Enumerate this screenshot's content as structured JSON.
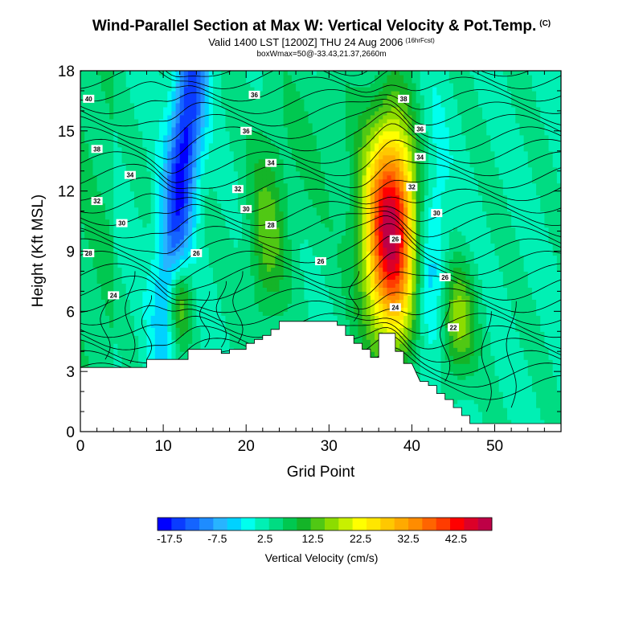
{
  "header": {
    "title": "Wind-Parallel Section at Max W: Vertical Velocity & Pot.Temp.",
    "title_mark": "(C)",
    "subtitle": "Valid 1400 LST [1200Z] THU 24 Aug 2006",
    "subtitle_note": "(16hrFcst)",
    "info": "boxWmax=50@-33.43,21.37,2660m"
  },
  "chart_data": {
    "type": "heatmap",
    "xlabel": "Grid Point",
    "ylabel": "Height (Kft MSL)",
    "xlim": [
      0,
      58
    ],
    "ylim": [
      0,
      18
    ],
    "xticks": [
      0,
      10,
      20,
      30,
      40,
      50
    ],
    "yticks": [
      0,
      3,
      6,
      9,
      12,
      15,
      18
    ],
    "colorbar": {
      "title": "Vertical Velocity (cm/s)",
      "tick_labels": [
        "-17.5",
        "-7.5",
        "2.5",
        "12.5",
        "22.5",
        "32.5",
        "42.5"
      ],
      "tick_values": [
        -17.5,
        -7.5,
        2.5,
        12.5,
        22.5,
        32.5,
        42.5
      ],
      "range": [
        -20,
        50
      ],
      "colors": [
        "#0000ff",
        "#0a3cff",
        "#1464ff",
        "#1e8cff",
        "#28b4ff",
        "#00d2ff",
        "#00ffee",
        "#00f0b4",
        "#00dc82",
        "#00c850",
        "#14b428",
        "#50c814",
        "#8cdc00",
        "#c8f000",
        "#ffff00",
        "#ffe600",
        "#ffc800",
        "#ffaa00",
        "#ff8c00",
        "#ff6400",
        "#ff3c00",
        "#ff0000",
        "#dc0028",
        "#be0046"
      ]
    },
    "contour_labels": [
      {
        "text": "40",
        "x": 1,
        "y": 16.6
      },
      {
        "text": "38",
        "x": 2,
        "y": 14.1
      },
      {
        "text": "34",
        "x": 6,
        "y": 12.8
      },
      {
        "text": "32",
        "x": 2,
        "y": 11.5
      },
      {
        "text": "30",
        "x": 5,
        "y": 10.4
      },
      {
        "text": "28",
        "x": 1,
        "y": 8.9
      },
      {
        "text": "24",
        "x": 4,
        "y": 6.8
      },
      {
        "text": "26",
        "x": 14,
        "y": 8.9
      },
      {
        "text": "36",
        "x": 21,
        "y": 16.8
      },
      {
        "text": "36",
        "x": 20,
        "y": 15.0
      },
      {
        "text": "34",
        "x": 23,
        "y": 13.4
      },
      {
        "text": "32",
        "x": 19,
        "y": 12.1
      },
      {
        "text": "30",
        "x": 20,
        "y": 11.1
      },
      {
        "text": "28",
        "x": 23,
        "y": 10.3
      },
      {
        "text": "26",
        "x": 29,
        "y": 8.5
      },
      {
        "text": "38",
        "x": 39,
        "y": 16.6
      },
      {
        "text": "36",
        "x": 41,
        "y": 15.1
      },
      {
        "text": "34",
        "x": 41,
        "y": 13.7
      },
      {
        "text": "32",
        "x": 40,
        "y": 12.2
      },
      {
        "text": "30",
        "x": 43,
        "y": 10.9
      },
      {
        "text": "26",
        "x": 38,
        "y": 9.6
      },
      {
        "text": "26",
        "x": 44,
        "y": 7.7
      },
      {
        "text": "24",
        "x": 38,
        "y": 6.2
      },
      {
        "text": "22",
        "x": 45,
        "y": 5.2
      }
    ]
  }
}
